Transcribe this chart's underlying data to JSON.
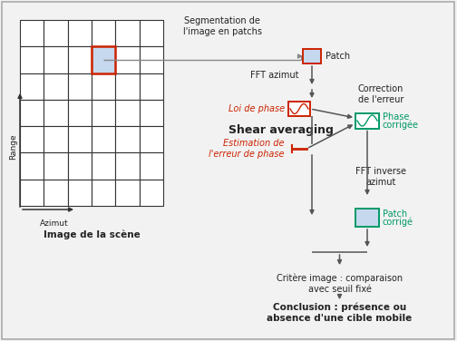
{
  "bg_color": "#f2f2f2",
  "border_color": "#aaaaaa",
  "grid_line_color": "#333333",
  "grid_fill": "#ffffff",
  "patch_border_red": "#cc2200",
  "patch_fill": "#c5d8ee",
  "green_border": "#009966",
  "green_text": "#009966",
  "red_text": "#cc2200",
  "arrow_color": "#555555",
  "text_color": "#222222",
  "wave_color_red": "#cc2200",
  "wave_color_green": "#009966",
  "title_text": "Image de la scène",
  "seg_text": "Segmentation de\nl'image en patchs",
  "patch_label": "Patch",
  "fft_az_text": "FFT azimut",
  "loi_phase_text": "Loi de phase",
  "shear_text": "Shear averaging",
  "estim_text": "Estimation de\nl'erreur de phase",
  "correction_text": "Correction\nde l'erreur",
  "phase_corr_label": "Phase\ncorrigée",
  "fft_inv_text": "FFT inverse\nazimut",
  "patch_corr_label": "Patch\ncorrigé",
  "critere_text": "Critère image : comparaison\navec seuil fixé",
  "conclusion_text": "Conclusion : présence ou\nabsence d'une cible mobile",
  "range_label": "Range",
  "azimut_label": "Azimut"
}
